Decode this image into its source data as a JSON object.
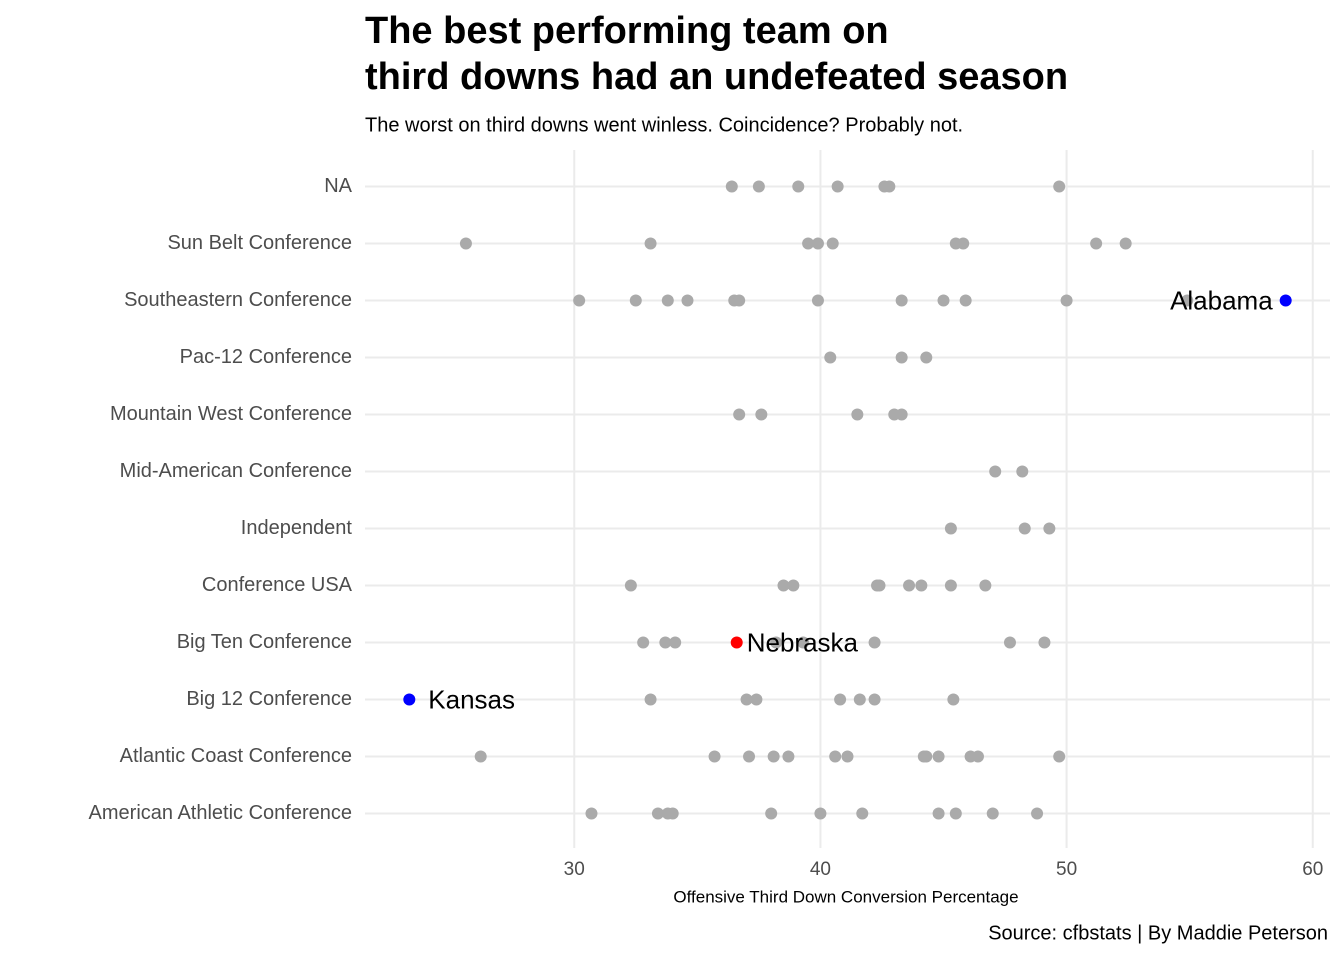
{
  "chart_data": {
    "type": "dot",
    "title": [
      "The best performing team on",
      "third downs had an undefeated season"
    ],
    "subtitle": "The worst on third downs went winless. Coincidence? Probably not.",
    "x_label": "Offensive Third Down Conversion Percentage",
    "caption": "Source: cfbstats | By Maddie Peterson",
    "categories": [
      "NA",
      "Sun Belt Conference",
      "Southeastern Conference",
      "Pac-12 Conference",
      "Mountain West Conference",
      "Mid-American Conference",
      "Independent",
      "Conference USA",
      "Big Ten Conference",
      "Big 12 Conference",
      "Atlantic Coast Conference",
      "American Athletic Conference"
    ],
    "values": [
      [
        36.4,
        37.5,
        39.1,
        40.7,
        42.6,
        42.8,
        49.7
      ],
      [
        25.6,
        33.1,
        39.5,
        39.9,
        40.5,
        45.5,
        45.8,
        51.2,
        52.4
      ],
      [
        30.2,
        32.5,
        33.8,
        34.6,
        36.5,
        36.7,
        39.9,
        43.3,
        45.0,
        45.9,
        50.0,
        54.9
      ],
      [
        40.4,
        43.3,
        44.3
      ],
      [
        36.7,
        37.6,
        41.5,
        43.0,
        43.3
      ],
      [
        47.1,
        48.2
      ],
      [
        45.3,
        48.3,
        49.3
      ],
      [
        32.3,
        38.5,
        38.9,
        42.3,
        42.4,
        43.6,
        44.1,
        45.3,
        46.7
      ],
      [
        32.8,
        33.7,
        34.1,
        38.2,
        39.3,
        42.2,
        47.7,
        49.1
      ],
      [
        33.1,
        37.0,
        37.4,
        40.8,
        41.6,
        42.2,
        45.4
      ],
      [
        26.2,
        35.7,
        37.1,
        38.1,
        38.7,
        40.6,
        41.1,
        44.2,
        44.3,
        44.8,
        46.1,
        46.4,
        49.7
      ],
      [
        30.7,
        33.4,
        33.8,
        34.0,
        38.0,
        40.0,
        41.7,
        44.8,
        45.5,
        47.0,
        48.8
      ]
    ],
    "color": "#aaaaaa",
    "highlights": [
      {
        "label": "Alabama",
        "category": "Southeastern Conference",
        "x": 58.9,
        "color": "#0000ff"
      },
      {
        "label": "Nebraska",
        "category": "Big Ten Conference",
        "x": 36.6,
        "color": "#ff0000"
      },
      {
        "label": "Kansas",
        "category": "Big 12 Conference",
        "x": 23.3,
        "color": "#0000ff"
      }
    ],
    "xlim": [
      21.5,
      60.7
    ],
    "xticks": [
      30,
      40,
      50,
      60
    ],
    "grid": true
  }
}
